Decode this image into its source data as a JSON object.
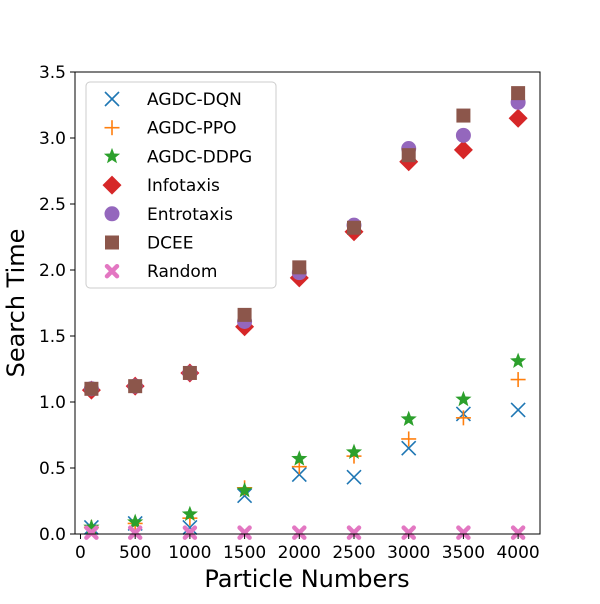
{
  "chart_data": {
    "type": "scatter",
    "title": "",
    "xlabel": "Particle Numbers",
    "ylabel": "Search Time",
    "xlim": [
      -50,
      4200
    ],
    "ylim": [
      0,
      3.5
    ],
    "xticks": [
      0,
      500,
      1000,
      1500,
      2000,
      2500,
      3000,
      3500,
      4000
    ],
    "xtick_labels": [
      "0",
      "500",
      "1000",
      "1500",
      "2000",
      "2500",
      "3000",
      "3500",
      "4000"
    ],
    "yticks": [
      0,
      0.5,
      1,
      1.5,
      2,
      2.5,
      3,
      3.5
    ],
    "ytick_labels": [
      "0.0",
      "0.5",
      "1.0",
      "1.5",
      "2.0",
      "2.5",
      "3.0",
      "3.5"
    ],
    "legend_position": "upper-left",
    "x": [
      100,
      500,
      1000,
      1500,
      2000,
      2500,
      3000,
      3500,
      4000
    ],
    "series": [
      {
        "name": "AGDC-DQN",
        "marker": "x",
        "color": "#1f77b4",
        "values": [
          0.05,
          0.08,
          0.05,
          0.29,
          0.45,
          0.43,
          0.65,
          0.91,
          0.94
        ]
      },
      {
        "name": "AGDC-PPO",
        "marker": "plus",
        "color": "#ff7f0e",
        "values": [
          0.05,
          0.08,
          0.12,
          0.35,
          0.51,
          0.59,
          0.72,
          0.88,
          1.17
        ]
      },
      {
        "name": "AGDC-DDPG",
        "marker": "star",
        "color": "#2ca02c",
        "values": [
          0.05,
          0.09,
          0.15,
          0.33,
          0.57,
          0.62,
          0.87,
          1.02,
          1.31
        ]
      },
      {
        "name": "Infotaxis",
        "marker": "diamond",
        "color": "#d62728",
        "values": [
          1.09,
          1.12,
          1.22,
          1.57,
          1.94,
          2.29,
          2.82,
          2.91,
          3.15
        ]
      },
      {
        "name": "Entrotaxis",
        "marker": "circle",
        "color": "#9467bd",
        "values": [
          1.1,
          1.12,
          1.22,
          1.61,
          1.98,
          2.34,
          2.92,
          3.02,
          3.27
        ]
      },
      {
        "name": "DCEE",
        "marker": "square",
        "color": "#8c564b",
        "values": [
          1.1,
          1.12,
          1.22,
          1.66,
          2.02,
          2.32,
          2.87,
          3.17,
          3.34
        ]
      },
      {
        "name": "Random",
        "marker": "thick-x",
        "color": "#e377c2",
        "values": [
          0.01,
          0.01,
          0.01,
          0.01,
          0.01,
          0.01,
          0.01,
          0.01,
          0.01
        ]
      }
    ]
  }
}
